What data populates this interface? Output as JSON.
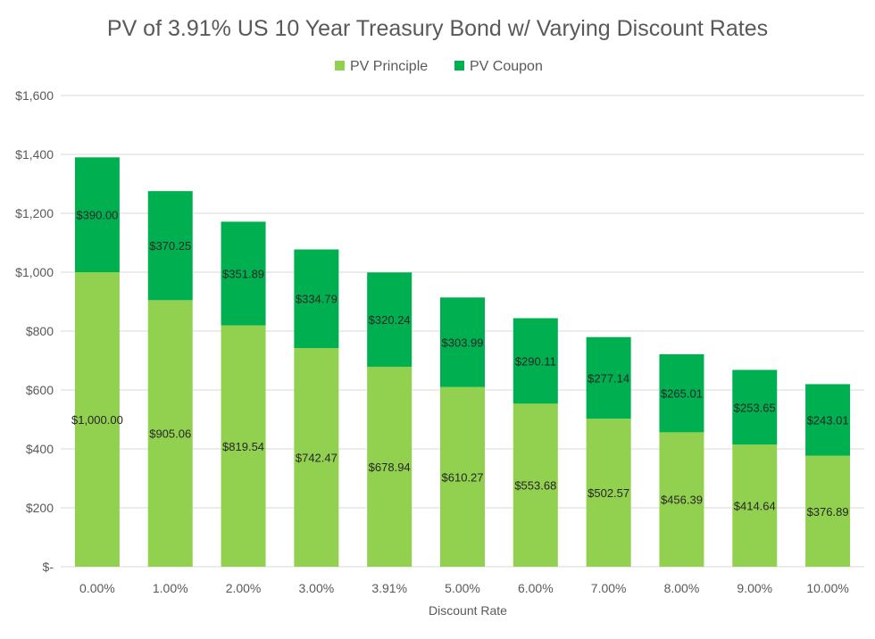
{
  "chart_data": {
    "type": "bar",
    "stacked": true,
    "title": "PV of 3.91% US 10 Year Treasury Bond w/ Varying Discount Rates",
    "xlabel": "Discount Rate",
    "ylabel": "",
    "ylim": [
      0,
      1600
    ],
    "yticks": [
      {
        "value": 0,
        "label": "$-"
      },
      {
        "value": 200,
        "label": "$200"
      },
      {
        "value": 400,
        "label": "$400"
      },
      {
        "value": 600,
        "label": "$600"
      },
      {
        "value": 800,
        "label": "$800"
      },
      {
        "value": 1000,
        "label": "$1,000"
      },
      {
        "value": 1200,
        "label": "$1,200"
      },
      {
        "value": 1400,
        "label": "$1,400"
      },
      {
        "value": 1600,
        "label": "$1,600"
      }
    ],
    "grid": true,
    "legend": "top-center",
    "categories": [
      "0.00%",
      "1.00%",
      "2.00%",
      "3.00%",
      "3.91%",
      "5.00%",
      "6.00%",
      "7.00%",
      "8.00%",
      "9.00%",
      "10.00%"
    ],
    "series": [
      {
        "name": "PV Principle",
        "color": "#92d050",
        "values": [
          1000.0,
          905.06,
          819.54,
          742.47,
          678.94,
          610.27,
          553.68,
          502.57,
          456.39,
          414.64,
          376.89
        ],
        "labels": [
          "$1,000.00",
          "$905.06",
          "$819.54",
          "$742.47",
          "$678.94",
          "$610.27",
          "$553.68",
          "$502.57",
          "$456.39",
          "$414.64",
          "$376.89"
        ]
      },
      {
        "name": "PV Coupon",
        "color": "#00b050",
        "values": [
          390.0,
          370.25,
          351.89,
          334.79,
          320.24,
          303.99,
          290.11,
          277.14,
          265.01,
          253.65,
          243.01
        ],
        "labels": [
          "$390.00",
          "$370.25",
          "$351.89",
          "$334.79",
          "$320.24",
          "$303.99",
          "$290.11",
          "$277.14",
          "$265.01",
          "$253.65",
          "$243.01"
        ]
      }
    ]
  }
}
